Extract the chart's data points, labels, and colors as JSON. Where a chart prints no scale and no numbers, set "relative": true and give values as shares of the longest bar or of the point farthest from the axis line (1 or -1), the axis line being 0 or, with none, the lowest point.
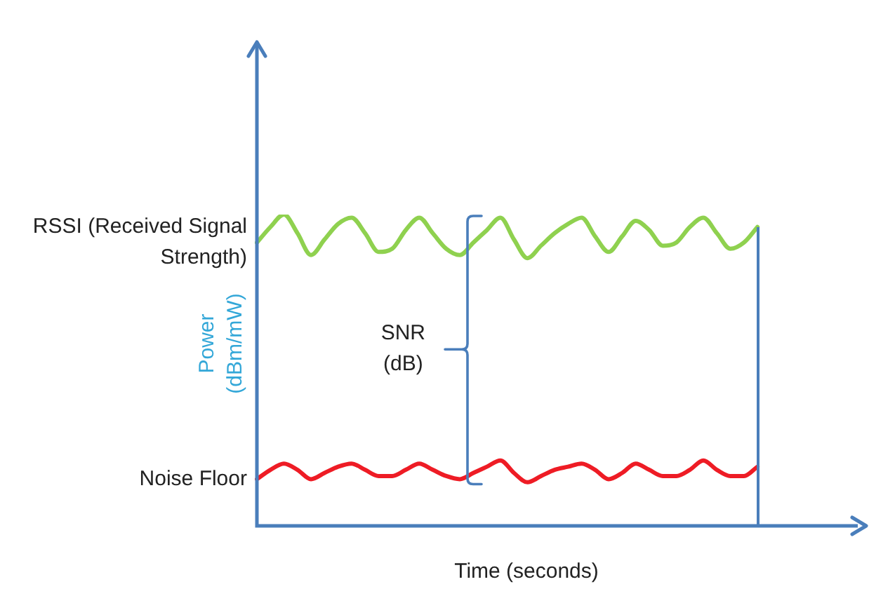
{
  "chart_data": {
    "type": "line",
    "relative": true,
    "xlabel": "Time (seconds)",
    "ylabel": "Power (dBm/mW)",
    "annotations": [
      "SNR (dB)"
    ],
    "marker": "none",
    "categories": [
      null,
      null,
      null,
      null,
      null,
      null,
      null,
      null,
      null,
      null,
      null,
      null,
      null,
      null,
      null,
      null,
      null,
      null,
      null,
      null,
      null,
      null,
      null,
      null,
      null,
      null,
      null,
      null,
      null,
      null,
      null,
      null,
      null,
      null,
      null,
      null,
      null,
      null,
      null,
      null,
      null,
      null,
      null,
      null,
      null
    ],
    "series": [
      {
        "name": "RSSI (Received Signal Strength)",
        "color": "#8fd14f",
        "values": [
          0.91,
          0.96,
          1.0,
          0.94,
          0.87,
          0.92,
          0.97,
          0.99,
          0.94,
          0.88,
          0.89,
          0.95,
          0.99,
          0.94,
          0.89,
          0.87,
          0.91,
          0.95,
          0.99,
          0.92,
          0.86,
          0.9,
          0.94,
          0.97,
          0.99,
          0.93,
          0.88,
          0.93,
          0.98,
          0.95,
          0.9,
          0.91,
          0.96,
          0.99,
          0.94,
          0.89,
          0.91,
          0.96,
          null,
          null,
          null,
          null,
          null,
          null,
          null
        ]
      },
      {
        "name": "Noise Floor",
        "color": "#ee1c25",
        "values": [
          0.15,
          0.18,
          0.2,
          0.18,
          0.15,
          0.17,
          0.19,
          0.2,
          0.18,
          0.16,
          0.16,
          0.18,
          0.2,
          0.18,
          0.16,
          0.15,
          0.17,
          0.19,
          0.21,
          0.17,
          0.14,
          0.16,
          0.18,
          0.19,
          0.2,
          0.18,
          0.15,
          0.17,
          0.2,
          0.18,
          0.16,
          0.16,
          0.18,
          0.21,
          0.18,
          0.16,
          0.16,
          0.19,
          null,
          null,
          null,
          null,
          null,
          null,
          null
        ]
      }
    ]
  }
}
